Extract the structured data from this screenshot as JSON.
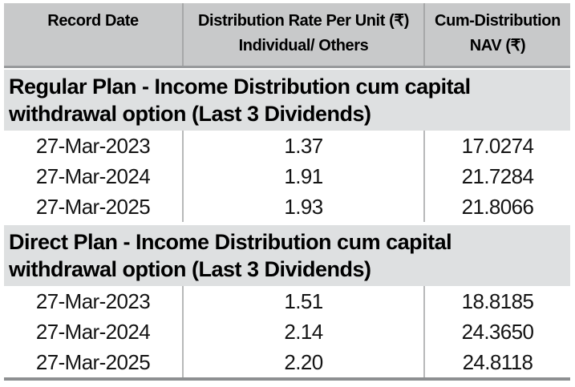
{
  "table": {
    "header": {
      "col1": {
        "line1": "Record Date",
        "line2": ""
      },
      "col2": {
        "line1": "Distribution Rate Per Unit  (₹)",
        "line2": "Individual/ Others"
      },
      "col3": {
        "line1": "Cum-Distribution",
        "line2": "NAV (₹)"
      }
    },
    "sections": [
      {
        "title": "Regular Plan - Income Distribution cum capital withdrawal option (Last 3 Dividends)",
        "rows": [
          [
            "27-Mar-2023",
            "1.37",
            "17.0274"
          ],
          [
            "27-Mar-2024",
            "1.91",
            "21.7284"
          ],
          [
            "27-Mar-2025",
            "1.93",
            "21.8066"
          ]
        ]
      },
      {
        "title": "Direct Plan - Income Distribution cum capital withdrawal option (Last 3 Dividends)",
        "rows": [
          [
            "27-Mar-2023",
            "1.51",
            "18.8185"
          ],
          [
            "27-Mar-2024",
            "2.14",
            "24.3650"
          ],
          [
            "27-Mar-2025",
            "2.20",
            "24.8118"
          ]
        ]
      }
    ]
  },
  "colors": {
    "header_bg": "#c8c9ca",
    "section_bg": "#dee0e1",
    "header_divider": "#a6a7a8",
    "row_divider": "#b7b8b9",
    "header_rule": "#989a9c",
    "bottom_rule": "#8d8f91"
  }
}
